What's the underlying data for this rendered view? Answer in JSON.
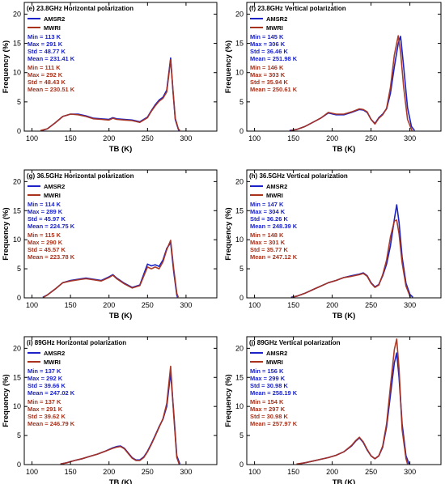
{
  "colors": {
    "amsr2": "#1a22c8",
    "mwri": "#a8321c"
  },
  "chart_data": [
    {
      "type": "line",
      "title": "(e) 23.8GHz Horizontal polarization",
      "xlabel": "TB (K)",
      "ylabel": "Frequency (%)",
      "xlim": [
        90,
        340
      ],
      "ylim": [
        0,
        22
      ],
      "xticks": [
        100,
        150,
        200,
        250,
        300
      ],
      "yticks": [
        0,
        5,
        10,
        15,
        20
      ],
      "legend": "top-left",
      "series": [
        {
          "name": "AMSR2",
          "x": [
            113,
            120,
            130,
            140,
            150,
            160,
            170,
            180,
            190,
            200,
            205,
            210,
            220,
            230,
            240,
            250,
            255,
            260,
            265,
            270,
            275,
            280,
            283,
            286,
            290,
            291
          ],
          "y": [
            0.1,
            0.4,
            1.4,
            2.5,
            2.9,
            2.9,
            2.6,
            2.2,
            2.1,
            2.0,
            2.3,
            2.1,
            2.0,
            1.9,
            1.6,
            2.4,
            3.5,
            4.5,
            5.3,
            5.8,
            7.0,
            12.5,
            7.0,
            2.0,
            0.3,
            0.1
          ]
        },
        {
          "name": "MWRI",
          "x": [
            111,
            120,
            130,
            140,
            150,
            160,
            170,
            180,
            190,
            200,
            205,
            210,
            220,
            230,
            240,
            250,
            255,
            260,
            265,
            270,
            275,
            280,
            283,
            286,
            290,
            292
          ],
          "y": [
            0.1,
            0.4,
            1.4,
            2.5,
            2.9,
            2.8,
            2.5,
            2.1,
            2.0,
            1.9,
            2.2,
            2.0,
            1.9,
            1.8,
            1.5,
            2.3,
            3.4,
            4.3,
            5.1,
            5.6,
            6.7,
            12.2,
            7.2,
            2.2,
            0.4,
            0.1
          ]
        }
      ],
      "stats": [
        {
          "lines": [
            "Min = 113 K",
            "Max = 291 K",
            "Std = 48.77 K",
            "Mean = 231.41 K"
          ]
        },
        {
          "lines": [
            "Min = 111 K",
            "Max = 292 K",
            "Std = 48.43 K",
            "Mean = 230.51 K"
          ]
        }
      ]
    },
    {
      "type": "line",
      "title": "(f) 23.8GHz Vertical polarization",
      "xlabel": "TB (K)",
      "ylabel": "Frequency (%)",
      "xlim": [
        90,
        340
      ],
      "ylim": [
        0,
        22
      ],
      "xticks": [
        100,
        150,
        200,
        250,
        300
      ],
      "yticks": [
        0,
        5,
        10,
        15,
        20
      ],
      "legend": "top-left",
      "series": [
        {
          "name": "AMSR2",
          "x": [
            145,
            155,
            165,
            175,
            185,
            195,
            205,
            215,
            225,
            235,
            240,
            245,
            250,
            255,
            260,
            265,
            270,
            275,
            280,
            285,
            288,
            292,
            297,
            302,
            306
          ],
          "y": [
            0.1,
            0.3,
            0.8,
            1.5,
            2.2,
            3.1,
            2.8,
            2.8,
            3.2,
            3.7,
            3.6,
            3.2,
            2.0,
            1.3,
            2.3,
            2.9,
            3.8,
            6.5,
            11.0,
            15.0,
            16.2,
            11.0,
            4.0,
            0.8,
            0.1
          ]
        },
        {
          "name": "MWRI",
          "x": [
            146,
            155,
            165,
            175,
            185,
            195,
            205,
            215,
            225,
            235,
            240,
            245,
            250,
            255,
            260,
            265,
            270,
            275,
            280,
            285,
            288,
            292,
            297,
            302,
            303
          ],
          "y": [
            0.1,
            0.3,
            0.8,
            1.5,
            2.2,
            3.2,
            2.9,
            2.9,
            3.3,
            3.8,
            3.7,
            3.3,
            2.0,
            1.2,
            2.2,
            2.8,
            3.9,
            7.5,
            13.0,
            16.3,
            13.5,
            7.5,
            2.0,
            0.3,
            0.1
          ]
        }
      ],
      "stats": [
        {
          "lines": [
            "Min = 145 K",
            "Max = 306 K",
            "Std = 36.46 K",
            "Mean = 251.98 K"
          ]
        },
        {
          "lines": [
            "Min = 146 K",
            "Max = 303 K",
            "Std = 35.94 K",
            "Mean = 250.61 K"
          ]
        }
      ]
    },
    {
      "type": "line",
      "title": "(g) 36.5GHz Horizontal polarization",
      "xlabel": "TB (K)",
      "ylabel": "Frequency (%)",
      "xlim": [
        90,
        340
      ],
      "ylim": [
        0,
        22
      ],
      "xticks": [
        100,
        150,
        200,
        250,
        300
      ],
      "yticks": [
        0,
        5,
        10,
        15,
        20
      ],
      "legend": "top-left",
      "series": [
        {
          "name": "AMSR2",
          "x": [
            114,
            120,
            130,
            140,
            150,
            160,
            170,
            180,
            190,
            200,
            205,
            210,
            220,
            230,
            240,
            250,
            255,
            260,
            265,
            270,
            275,
            280,
            284,
            288,
            289
          ],
          "y": [
            0.1,
            0.5,
            1.5,
            2.6,
            3.0,
            3.2,
            3.4,
            3.2,
            3.0,
            3.6,
            4.0,
            3.4,
            2.5,
            1.8,
            2.2,
            5.8,
            5.5,
            5.7,
            5.4,
            6.5,
            8.5,
            9.5,
            4.5,
            0.5,
            0.1
          ]
        },
        {
          "name": "MWRI",
          "x": [
            115,
            120,
            130,
            140,
            150,
            160,
            170,
            180,
            190,
            200,
            205,
            210,
            220,
            230,
            240,
            250,
            255,
            260,
            265,
            270,
            275,
            280,
            284,
            288,
            290
          ],
          "y": [
            0.1,
            0.5,
            1.5,
            2.6,
            2.9,
            3.1,
            3.3,
            3.1,
            2.9,
            3.5,
            3.9,
            3.3,
            2.4,
            1.7,
            2.1,
            5.3,
            5.0,
            5.3,
            5.0,
            6.2,
            8.3,
            9.9,
            5.0,
            0.8,
            0.1
          ]
        }
      ],
      "stats": [
        {
          "lines": [
            "Min = 114 K",
            "Max = 289 K",
            "Std = 45.97 K",
            "Mean = 224.75 K"
          ]
        },
        {
          "lines": [
            "Min = 115 K",
            "Max = 290 K",
            "Std = 45.57 K",
            "Mean = 223.78 K"
          ]
        }
      ]
    },
    {
      "type": "line",
      "title": "(h) 36.5GHz Vertical polarization",
      "xlabel": "TB (K)",
      "ylabel": "Frequency (%)",
      "xlim": [
        90,
        340
      ],
      "ylim": [
        0,
        22
      ],
      "xticks": [
        100,
        150,
        200,
        250,
        300
      ],
      "yticks": [
        0,
        5,
        10,
        15,
        20
      ],
      "legend": "top-left",
      "series": [
        {
          "name": "AMSR2",
          "x": [
            147,
            155,
            165,
            175,
            185,
            195,
            205,
            215,
            225,
            235,
            240,
            245,
            250,
            255,
            260,
            265,
            270,
            275,
            280,
            283,
            286,
            290,
            295,
            300,
            304
          ],
          "y": [
            0.1,
            0.3,
            0.8,
            1.4,
            2.0,
            2.6,
            3.0,
            3.5,
            3.8,
            4.1,
            4.3,
            3.8,
            2.6,
            1.9,
            2.3,
            3.8,
            5.8,
            9.0,
            13.5,
            16.0,
            13.0,
            7.0,
            2.5,
            0.6,
            0.1
          ]
        },
        {
          "name": "MWRI",
          "x": [
            148,
            155,
            165,
            175,
            185,
            195,
            205,
            215,
            225,
            235,
            240,
            245,
            250,
            255,
            260,
            265,
            270,
            275,
            280,
            283,
            286,
            290,
            295,
            300,
            301
          ],
          "y": [
            0.1,
            0.3,
            0.8,
            1.4,
            2.0,
            2.6,
            3.0,
            3.5,
            3.7,
            4.0,
            4.2,
            3.7,
            2.5,
            1.8,
            2.2,
            4.0,
            6.5,
            10.5,
            13.2,
            13.4,
            11.0,
            6.0,
            2.0,
            0.3,
            0.1
          ]
        }
      ],
      "stats": [
        {
          "lines": [
            "Min = 147 K",
            "Max = 304 K",
            "Std = 36.26 K",
            "Mean = 248.39 K"
          ]
        },
        {
          "lines": [
            "Min = 148 K",
            "Max = 301 K",
            "Std = 35.77 K",
            "Mean = 247.12 K"
          ]
        }
      ]
    },
    {
      "type": "line",
      "title": "(i) 89GHz Horizontal polarization",
      "xlabel": "TB (K)",
      "ylabel": "Frequency (%)",
      "xlim": [
        90,
        340
      ],
      "ylim": [
        0,
        22
      ],
      "xticks": [
        100,
        150,
        200,
        250,
        300
      ],
      "yticks": [
        0,
        5,
        10,
        15,
        20
      ],
      "legend": "top-left",
      "series": [
        {
          "name": "AMSR2",
          "x": [
            137,
            145,
            155,
            165,
            175,
            185,
            195,
            205,
            210,
            215,
            220,
            225,
            230,
            235,
            240,
            245,
            250,
            255,
            260,
            265,
            270,
            275,
            280,
            284,
            288,
            292
          ],
          "y": [
            0.1,
            0.3,
            0.7,
            1.0,
            1.4,
            1.8,
            2.3,
            2.9,
            3.1,
            3.2,
            2.8,
            2.0,
            1.2,
            0.8,
            0.8,
            1.3,
            2.3,
            3.6,
            5.0,
            6.5,
            7.8,
            10.0,
            15.8,
            9.0,
            1.5,
            0.1
          ]
        },
        {
          "name": "MWRI",
          "x": [
            137,
            145,
            155,
            165,
            175,
            185,
            195,
            205,
            210,
            215,
            220,
            225,
            230,
            235,
            240,
            245,
            250,
            255,
            260,
            265,
            270,
            275,
            280,
            284,
            288,
            291
          ],
          "y": [
            0.1,
            0.3,
            0.7,
            1.0,
            1.4,
            1.8,
            2.3,
            2.8,
            3.0,
            3.1,
            2.7,
            1.9,
            1.1,
            0.7,
            0.7,
            1.2,
            2.2,
            3.5,
            4.9,
            6.4,
            7.9,
            10.5,
            16.9,
            8.5,
            1.2,
            0.1
          ]
        }
      ],
      "stats": [
        {
          "lines": [
            "Min = 137 K",
            "Max = 292 K",
            "Std = 39.66 K",
            "Mean = 247.02 K"
          ]
        },
        {
          "lines": [
            "Min = 137 K",
            "Max = 291 K",
            "Std = 39.62 K",
            "Mean = 246.79 K"
          ]
        }
      ]
    },
    {
      "type": "line",
      "title": "(j) 89GHz Vertical polarization",
      "xlabel": "TB (K)",
      "ylabel": "Frequency (%)",
      "xlim": [
        90,
        340
      ],
      "ylim": [
        0,
        22
      ],
      "xticks": [
        100,
        150,
        200,
        250,
        300
      ],
      "yticks": [
        0,
        5,
        10,
        15,
        20
      ],
      "legend": "top-left",
      "series": [
        {
          "name": "AMSR2",
          "x": [
            156,
            165,
            175,
            185,
            195,
            205,
            215,
            225,
            230,
            235,
            240,
            245,
            250,
            255,
            260,
            265,
            270,
            275,
            280,
            283,
            286,
            290,
            295,
            299
          ],
          "y": [
            0.1,
            0.3,
            0.6,
            0.9,
            1.2,
            1.6,
            2.2,
            3.2,
            4.0,
            4.6,
            3.8,
            2.5,
            1.5,
            1.0,
            1.5,
            3.0,
            6.5,
            12.0,
            17.5,
            19.2,
            15.0,
            7.0,
            1.5,
            0.1
          ]
        },
        {
          "name": "MWRI",
          "x": [
            154,
            165,
            175,
            185,
            195,
            205,
            215,
            225,
            230,
            235,
            240,
            245,
            250,
            255,
            260,
            265,
            270,
            275,
            280,
            283,
            286,
            290,
            295,
            297
          ],
          "y": [
            0.1,
            0.3,
            0.6,
            0.9,
            1.2,
            1.6,
            2.2,
            3.3,
            4.1,
            4.7,
            3.9,
            2.6,
            1.5,
            1.0,
            1.5,
            3.2,
            7.0,
            13.5,
            19.8,
            21.6,
            16.5,
            6.0,
            1.0,
            0.1
          ]
        }
      ],
      "stats": [
        {
          "lines": [
            "Min = 156 K",
            "Max = 299 K",
            "Std = 30.98 K",
            "Mean = 258.19 K"
          ]
        },
        {
          "lines": [
            "Min = 154 K",
            "Max = 297 K",
            "Std = 30.98 K",
            "Mean = 257.97 K"
          ]
        }
      ]
    }
  ]
}
